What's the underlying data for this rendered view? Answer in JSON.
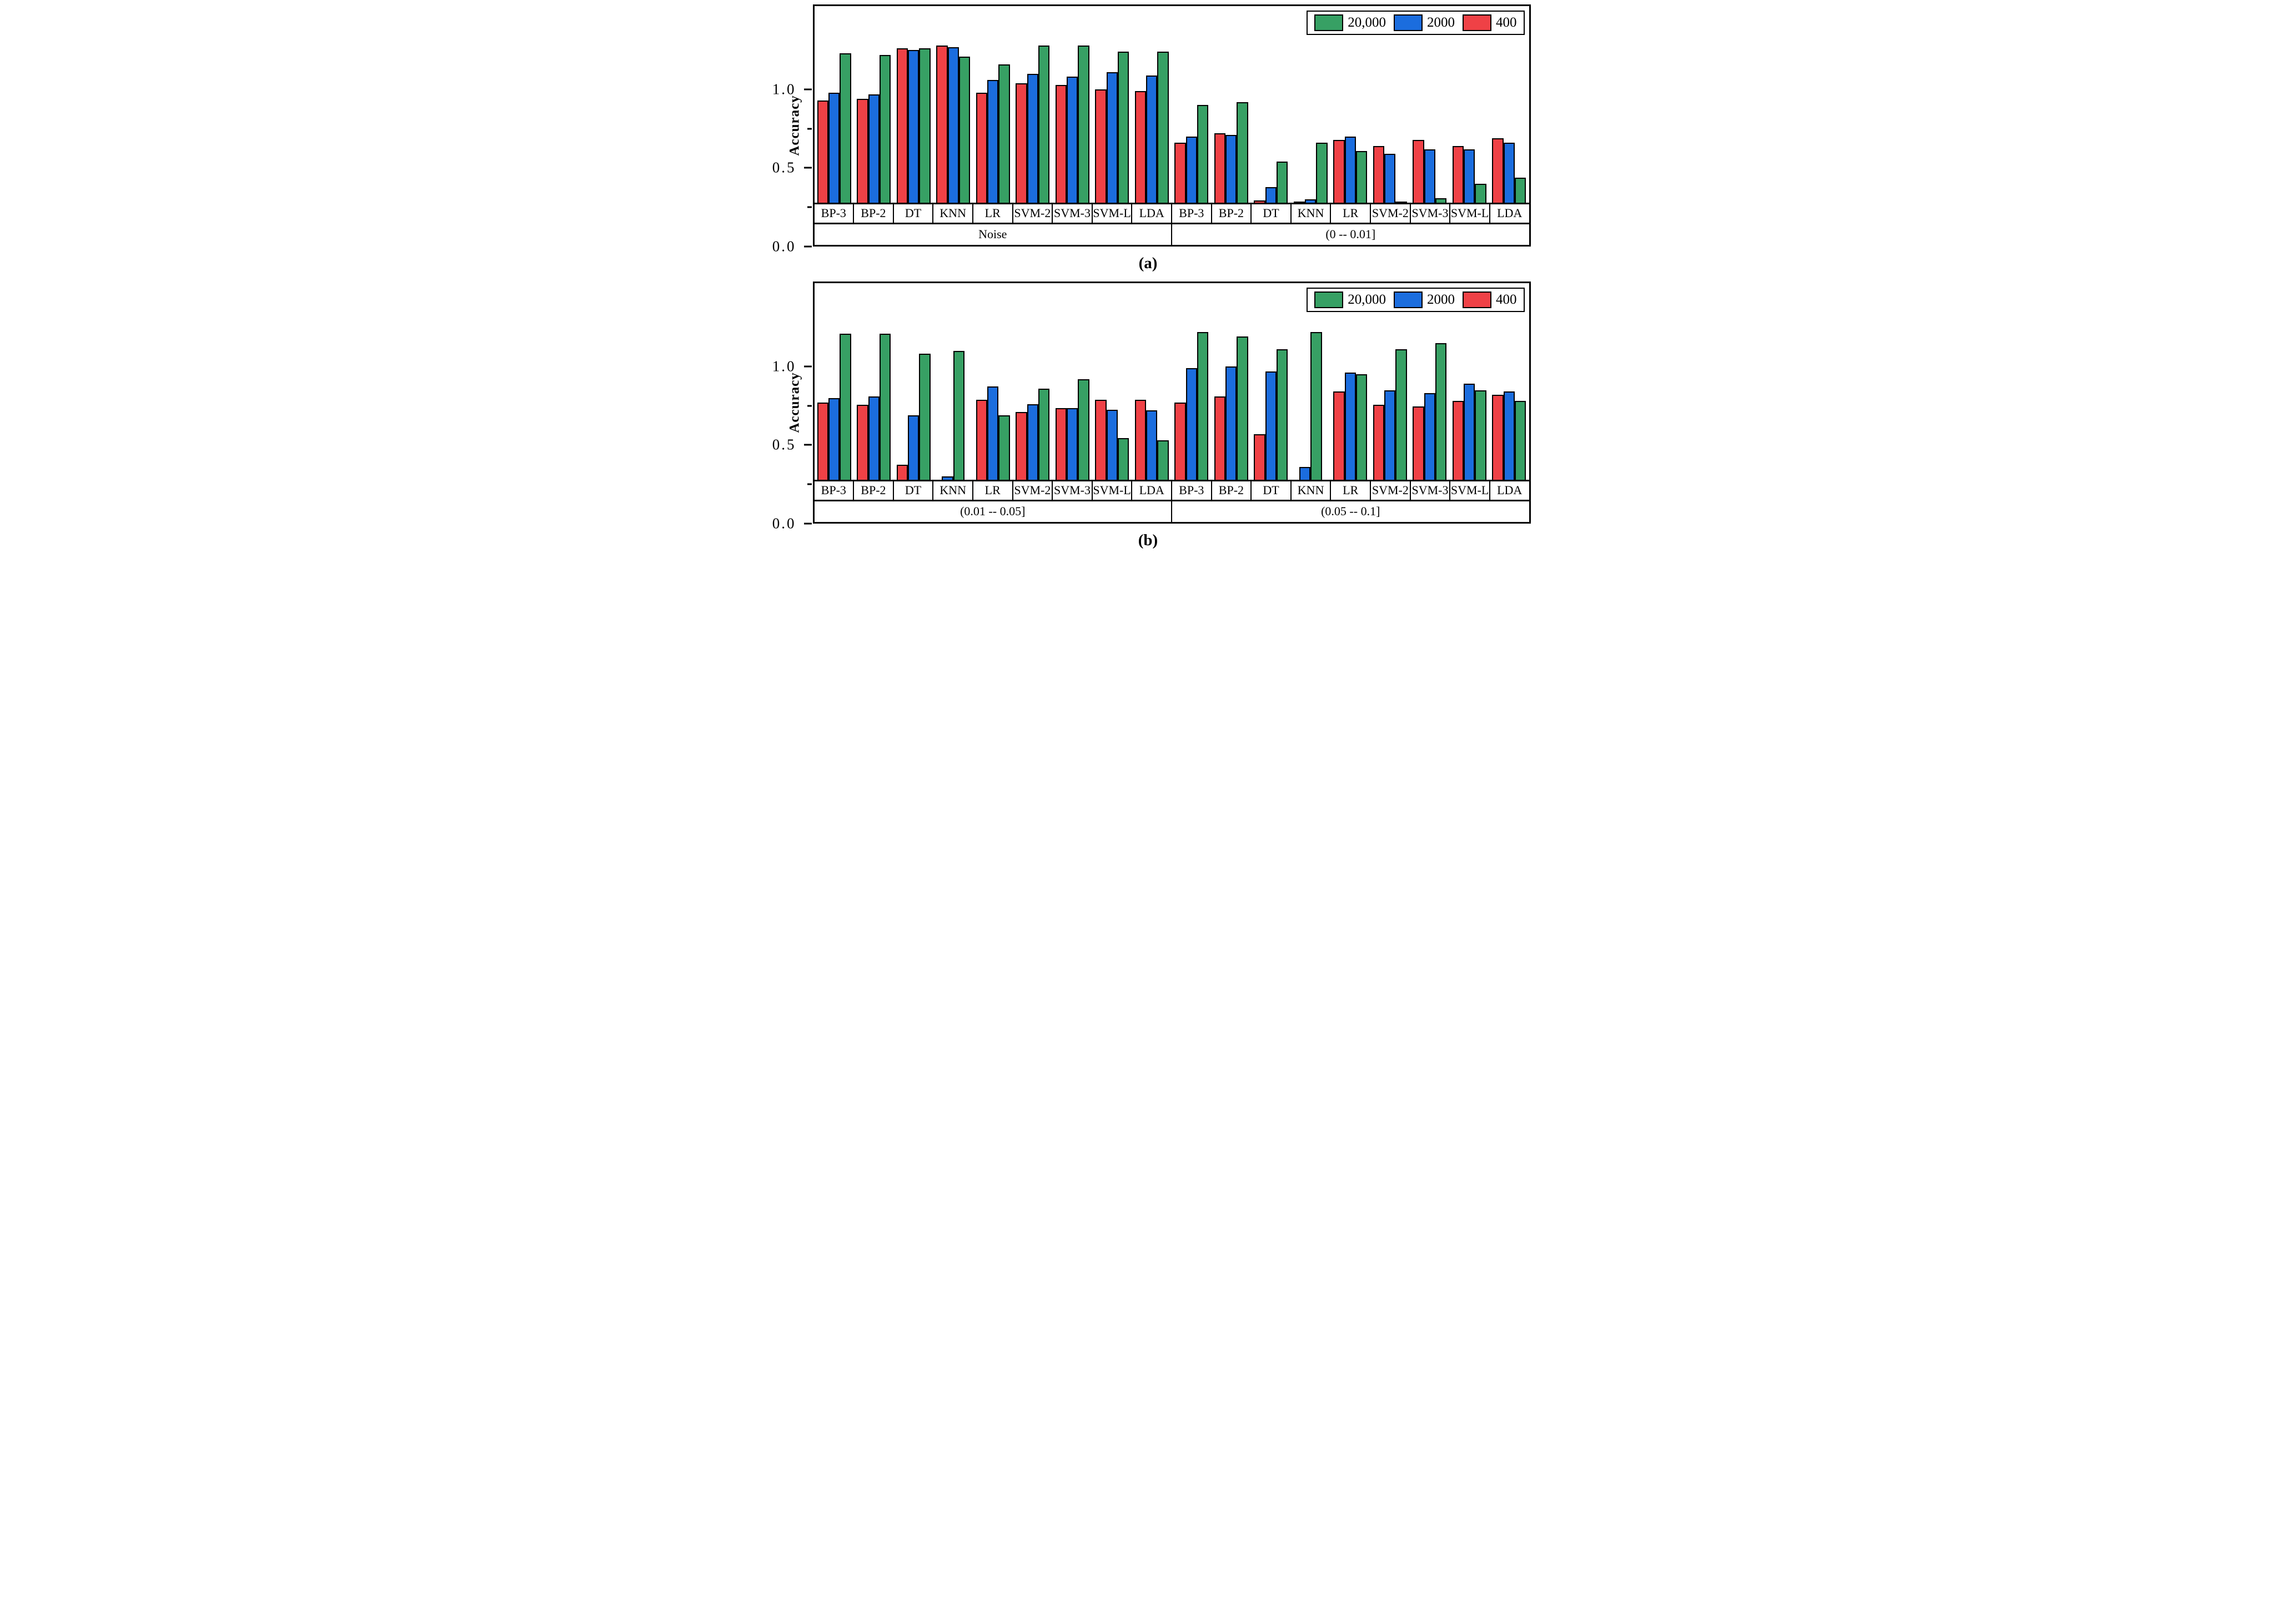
{
  "figure": {
    "ylabel": "Accuracy",
    "legend": [
      {
        "label": "20,000",
        "color": "#37A064"
      },
      {
        "label": "2000",
        "color": "#1B6DDE"
      },
      {
        "label": "400",
        "color": "#EF4146"
      }
    ],
    "colors": {
      "green": "#37A064",
      "blue": "#1B6DDE",
      "red": "#EF4146",
      "bar_border": "#000000"
    }
  },
  "chart_data": [
    {
      "panel": "a",
      "type": "bar",
      "caption": "(a)",
      "ylabel": "Accuracy",
      "ylim": [
        0,
        1.25
      ],
      "yticks": [
        {
          "value": 0.0,
          "label": "0.0"
        },
        {
          "value": 0.5,
          "label": "0.5"
        },
        {
          "value": 1.0,
          "label": "1.0"
        }
      ],
      "yticks_minor": [
        0.25,
        0.75
      ],
      "categories": [
        "BP-3",
        "BP-2",
        "DT",
        "KNN",
        "LR",
        "SVM-2",
        "SVM-3",
        "SVM-L",
        "LDA"
      ],
      "groups": [
        {
          "label": "Noise",
          "series": [
            {
              "name": "400",
              "color": "red",
              "values": [
                0.65,
                0.66,
                0.98,
                1.0,
                0.7,
                0.76,
                0.75,
                0.72,
                0.71
              ]
            },
            {
              "name": "2000",
              "color": "blue",
              "values": [
                0.7,
                0.69,
                0.97,
                0.99,
                0.78,
                0.82,
                0.8,
                0.83,
                0.81
              ]
            },
            {
              "name": "20,000",
              "color": "green",
              "values": [
                0.95,
                0.94,
                0.98,
                0.93,
                0.88,
                1.0,
                1.0,
                0.96,
                0.96
              ]
            }
          ]
        },
        {
          "label": "(0 -- 0.01]",
          "series": [
            {
              "name": "400",
              "color": "red",
              "values": [
                0.38,
                0.44,
                0.015,
                0.005,
                0.4,
                0.36,
                0.4,
                0.36,
                0.41
              ]
            },
            {
              "name": "2000",
              "color": "blue",
              "values": [
                0.42,
                0.43,
                0.1,
                0.02,
                0.42,
                0.31,
                0.34,
                0.34,
                0.38
              ]
            },
            {
              "name": "20,000",
              "color": "green",
              "values": [
                0.62,
                0.64,
                0.26,
                0.38,
                0.33,
                0.005,
                0.03,
                0.12,
                0.16
              ]
            }
          ]
        }
      ]
    },
    {
      "panel": "b",
      "type": "bar",
      "caption": "(b)",
      "ylabel": "Accuracy",
      "ylim": [
        0,
        1.25
      ],
      "yticks": [
        {
          "value": 0.0,
          "label": "0.0"
        },
        {
          "value": 0.5,
          "label": "0.5"
        },
        {
          "value": 1.0,
          "label": "1.0"
        }
      ],
      "yticks_minor": [
        0.25,
        0.75
      ],
      "categories": [
        "BP-3",
        "BP-2",
        "DT",
        "KNN",
        "LR",
        "SVM-2",
        "SVM-3",
        "SVM-L",
        "LDA"
      ],
      "groups": [
        {
          "label": "(0.01 -- 0.05]",
          "series": [
            {
              "name": "400",
              "color": "red",
              "values": [
                0.49,
                0.475,
                0.095,
                0,
                0.51,
                0.43,
                0.455,
                0.51,
                0.51
              ]
            },
            {
              "name": "2000",
              "color": "blue",
              "values": [
                0.52,
                0.53,
                0.41,
                0.02,
                0.595,
                0.48,
                0.455,
                0.445,
                0.44
              ]
            },
            {
              "name": "20,000",
              "color": "green",
              "values": [
                0.93,
                0.93,
                0.8,
                0.82,
                0.41,
                0.58,
                0.64,
                0.265,
                0.25
              ]
            }
          ]
        },
        {
          "label": "(0.05 -- 0.1]",
          "series": [
            {
              "name": "400",
              "color": "red",
              "values": [
                0.49,
                0.53,
                0.29,
                0,
                0.56,
                0.475,
                0.465,
                0.5,
                0.54
              ]
            },
            {
              "name": "2000",
              "color": "blue",
              "values": [
                0.71,
                0.72,
                0.69,
                0.08,
                0.68,
                0.57,
                0.55,
                0.61,
                0.56
              ]
            },
            {
              "name": "20,000",
              "color": "green",
              "values": [
                0.94,
                0.91,
                0.83,
                0.94,
                0.67,
                0.83,
                0.87,
                0.57,
                0.5
              ]
            }
          ]
        }
      ]
    }
  ]
}
